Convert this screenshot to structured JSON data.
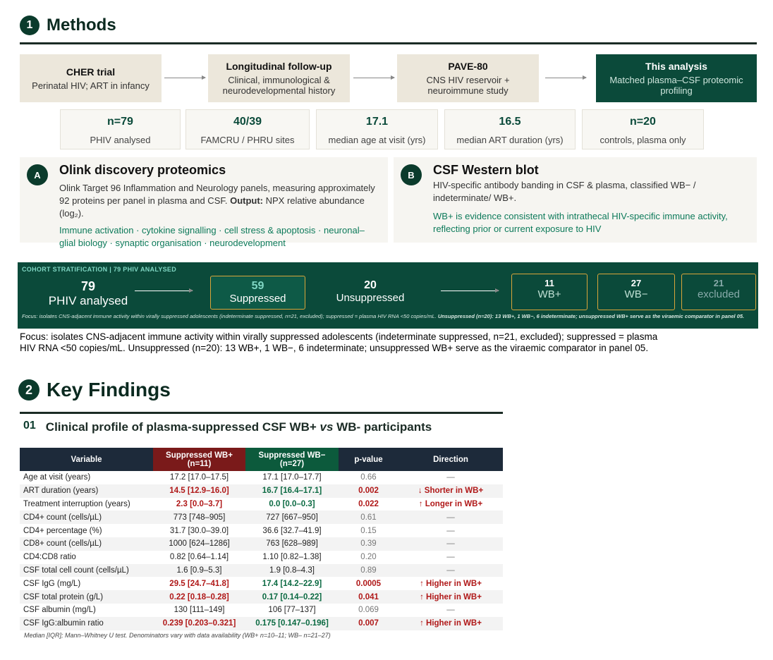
{
  "methods": {
    "number": "1",
    "title": "Methods",
    "flow": [
      {
        "title": "CHER trial",
        "text": "Perinatal HIV; ART in infancy"
      },
      {
        "title": "Longitudinal follow-up",
        "text": "Clinical, immunological & neurodevelopmental history"
      },
      {
        "title": "PAVE-80",
        "text": "CNS HIV reservoir + neuroimmune study"
      },
      {
        "title": "This analysis",
        "text": "Matched plasma–CSF proteomic profiling"
      }
    ],
    "stats": [
      {
        "value": "n=79",
        "label": "PHIV analysed"
      },
      {
        "value": "40/39",
        "label": "FAMCRU / PHRU sites"
      },
      {
        "value": "17.1",
        "label": "median age at visit (yrs)"
      },
      {
        "value": "16.5",
        "label": "median ART duration (yrs)"
      },
      {
        "value": "n=20",
        "label": "controls, plasma only"
      }
    ],
    "panels": [
      {
        "badge": "A",
        "title": "Olink discovery proteomics",
        "text": [
          "Olink Target 96 Inflammation and Neurology panels, measuring approximately 92 proteins per panel in plasma and CSF. ",
          "Output:",
          " NPX relative abundance (log₂)."
        ],
        "note": "Immune activation · cytokine signalling · cell stress & apoptosis · neuronal–glial biology · synaptic organisation · neurodevelopment"
      },
      {
        "badge": "B",
        "title": "CSF Western blot",
        "text": [
          "HIV-specific antibody banding in CSF & plasma, classified WB− / indeterminate/ WB+."
        ],
        "note": "WB+ is evidence consistent with intrathecal HIV-specific immune activity, reflecting prior or current exposure to HIV"
      }
    ]
  },
  "cohort": {
    "label": "COHORT STRATIFICATION | 79 PHIV ANALYSED",
    "total": {
      "value": "79",
      "label": "PHIV analysed"
    },
    "suppressed": {
      "value": "59",
      "label": "Suppressed"
    },
    "unsuppressed": {
      "value": "20",
      "label": "Unsuppressed"
    },
    "wb_plus": {
      "value": "11",
      "label": "WB+"
    },
    "wb_minus": {
      "value": "27",
      "label": "WB−"
    },
    "excluded": {
      "value": "21",
      "label": "excluded"
    },
    "focus": [
      "Focus: isolates CNS-adjacent immune activity within virally suppressed adolescents (indeterminate suppressed, n=21, excluded); suppressed = plasma HIV RNA <50 copies/mL. ",
      "Unsuppressed (n=20): 13 WB+, 1 WB−, 6 indeterminate; unsuppressed WB+ serve as the viraemic comparator in panel 05."
    ]
  },
  "focus": "Focus: isolates CNS-adjacent immune activity within virally suppressed adolescents (indeterminate suppressed, n=21, excluded); suppressed = plasma HIV RNA <50 copies/mL. Unsuppressed (n=20): 13 WB+, 1 WB−, 6 indeterminate; unsuppressed WB+ serve as the viraemic comparator in panel 05.",
  "findings": {
    "number": "2",
    "title": "Key Findings",
    "section": {
      "number": "01",
      "title": [
        "Clinical profile of plasma-suppressed CSF WB+ ",
        "vs",
        " WB- participants"
      ]
    },
    "table": {
      "headers": [
        "Variable",
        "Suppressed WB+ (n=11)",
        "Suppressed WB− (n=27)",
        "p-value",
        "Direction"
      ],
      "rows": [
        [
          "Age at visit (years)",
          "17.2 [17.0–17.5]",
          "17.1 [17.0–17.7]",
          "0.66",
          "—"
        ],
        [
          "ART duration (years)",
          "14.5 [12.9–16.0]",
          "16.7 [16.4–17.1]",
          "0.002",
          "↓ Shorter in WB+"
        ],
        [
          "Treatment interruption (years)",
          "2.3 [0.0–3.7]",
          "0.0 [0.0–0.3]",
          "0.022",
          "↑ Longer in WB+"
        ],
        [
          "CD4+ count (cells/µL)",
          "773 [748–905]",
          "727 [667–950]",
          "0.61",
          "—"
        ],
        [
          "CD4+ percentage (%)",
          "31.7 [30.0–39.0]",
          "36.6 [32.7–41.9]",
          "0.15",
          "—"
        ],
        [
          "CD8+ count (cells/µL)",
          "1000 [624–1286]",
          "763 [628–989]",
          "0.39",
          "—"
        ],
        [
          "CD4:CD8 ratio",
          "0.82 [0.64–1.14]",
          "1.10 [0.82–1.38]",
          "0.20",
          "—"
        ],
        [
          "CSF total cell count (cells/µL)",
          "1.6 [0.9–5.3]",
          "1.9 [0.8–4.3]",
          "0.89",
          "—"
        ],
        [
          "CSF IgG (mg/L)",
          "29.5 [24.7–41.8]",
          "17.4 [14.2–22.9]",
          "0.0005",
          "↑ Higher in WB+"
        ],
        [
          "CSF total protein (g/L)",
          "0.22 [0.18–0.28]",
          "0.17 [0.14–0.22]",
          "0.041",
          "↑ Higher in WB+"
        ],
        [
          "CSF albumin (mg/L)",
          "130 [111–149]",
          "106 [77–137]",
          "0.069",
          "—"
        ],
        [
          "CSF IgG:albumin ratio",
          "0.239 [0.203–0.321]",
          "0.175 [0.147–0.196]",
          "0.007",
          "↑ Higher in WB+"
        ]
      ],
      "footnote": "Median [IQR]; Mann–Whitney U test. Denominators vary with data availability (WB+ n=10–11; WB– n=21–27)"
    }
  }
}
